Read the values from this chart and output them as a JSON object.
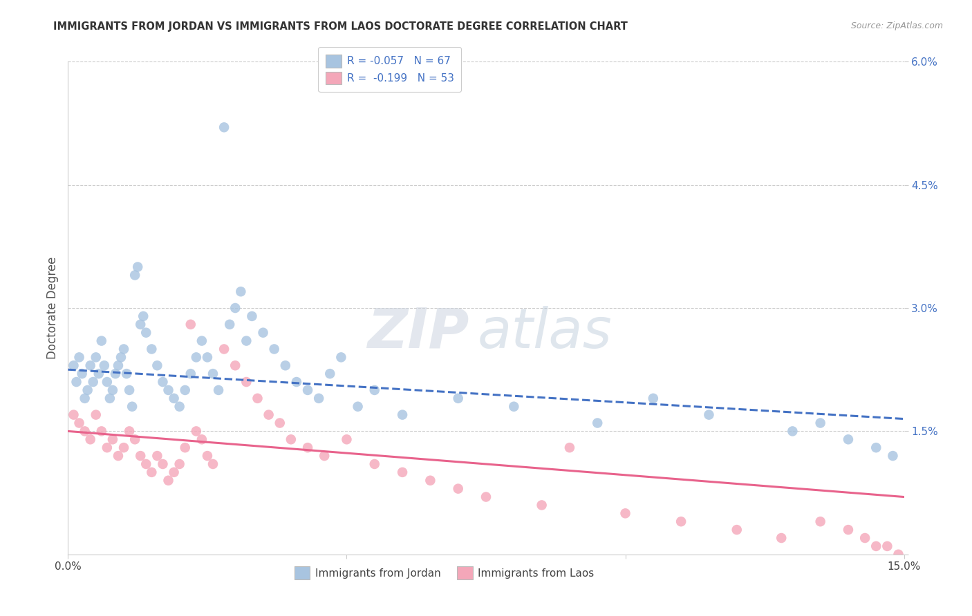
{
  "title": "IMMIGRANTS FROM JORDAN VS IMMIGRANTS FROM LAOS DOCTORATE DEGREE CORRELATION CHART",
  "source": "Source: ZipAtlas.com",
  "ylabel": "Doctorate Degree",
  "xmin": 0.0,
  "xmax": 15.0,
  "ymin": 0.0,
  "ymax": 6.0,
  "jordan_color": "#a8c4e0",
  "laos_color": "#f4a7b9",
  "jordan_line_color": "#4472c4",
  "laos_line_color": "#e8638c",
  "watermark_zip": "ZIP",
  "watermark_atlas": "atlas",
  "legend_r_jordan": "R = -0.057",
  "legend_n_jordan": "N = 67",
  "legend_r_laos": "R =  -0.199",
  "legend_n_laos": "N = 53",
  "jordan_scatter_x": [
    0.1,
    0.15,
    0.2,
    0.25,
    0.3,
    0.35,
    0.4,
    0.45,
    0.5,
    0.55,
    0.6,
    0.65,
    0.7,
    0.75,
    0.8,
    0.85,
    0.9,
    0.95,
    1.0,
    1.05,
    1.1,
    1.15,
    1.2,
    1.25,
    1.3,
    1.35,
    1.4,
    1.5,
    1.6,
    1.7,
    1.8,
    1.9,
    2.0,
    2.1,
    2.2,
    2.3,
    2.4,
    2.5,
    2.6,
    2.7,
    2.8,
    2.9,
    3.0,
    3.1,
    3.2,
    3.3,
    3.5,
    3.7,
    3.9,
    4.1,
    4.3,
    4.5,
    4.7,
    4.9,
    5.2,
    5.5,
    6.0,
    7.0,
    8.0,
    9.5,
    10.5,
    11.5,
    13.0,
    13.5,
    14.0,
    14.5,
    14.8
  ],
  "jordan_scatter_y": [
    2.3,
    2.1,
    2.4,
    2.2,
    1.9,
    2.0,
    2.3,
    2.1,
    2.4,
    2.2,
    2.6,
    2.3,
    2.1,
    1.9,
    2.0,
    2.2,
    2.3,
    2.4,
    2.5,
    2.2,
    2.0,
    1.8,
    3.4,
    3.5,
    2.8,
    2.9,
    2.7,
    2.5,
    2.3,
    2.1,
    2.0,
    1.9,
    1.8,
    2.0,
    2.2,
    2.4,
    2.6,
    2.4,
    2.2,
    2.0,
    5.2,
    2.8,
    3.0,
    3.2,
    2.6,
    2.9,
    2.7,
    2.5,
    2.3,
    2.1,
    2.0,
    1.9,
    2.2,
    2.4,
    1.8,
    2.0,
    1.7,
    1.9,
    1.8,
    1.6,
    1.9,
    1.7,
    1.5,
    1.6,
    1.4,
    1.3,
    1.2
  ],
  "laos_scatter_x": [
    0.1,
    0.2,
    0.3,
    0.4,
    0.5,
    0.6,
    0.7,
    0.8,
    0.9,
    1.0,
    1.1,
    1.2,
    1.3,
    1.4,
    1.5,
    1.6,
    1.7,
    1.8,
    1.9,
    2.0,
    2.1,
    2.2,
    2.3,
    2.4,
    2.5,
    2.6,
    2.8,
    3.0,
    3.2,
    3.4,
    3.6,
    3.8,
    4.0,
    4.3,
    4.6,
    5.0,
    5.5,
    6.0,
    6.5,
    7.0,
    7.5,
    8.5,
    9.0,
    10.0,
    11.0,
    12.0,
    12.8,
    13.5,
    14.0,
    14.3,
    14.5,
    14.7,
    14.9
  ],
  "laos_scatter_y": [
    1.7,
    1.6,
    1.5,
    1.4,
    1.7,
    1.5,
    1.3,
    1.4,
    1.2,
    1.3,
    1.5,
    1.4,
    1.2,
    1.1,
    1.0,
    1.2,
    1.1,
    0.9,
    1.0,
    1.1,
    1.3,
    2.8,
    1.5,
    1.4,
    1.2,
    1.1,
    2.5,
    2.3,
    2.1,
    1.9,
    1.7,
    1.6,
    1.4,
    1.3,
    1.2,
    1.4,
    1.1,
    1.0,
    0.9,
    0.8,
    0.7,
    0.6,
    1.3,
    0.5,
    0.4,
    0.3,
    0.2,
    0.4,
    0.3,
    0.2,
    0.1,
    0.1,
    0.0
  ],
  "jordan_line_x0": 0.0,
  "jordan_line_y0": 2.25,
  "jordan_line_x1": 15.0,
  "jordan_line_y1": 1.65,
  "laos_line_x0": 0.0,
  "laos_line_y0": 1.5,
  "laos_line_x1": 15.0,
  "laos_line_y1": 0.7
}
